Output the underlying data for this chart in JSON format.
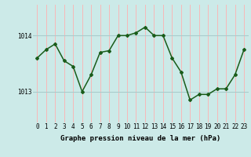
{
  "hours": [
    0,
    1,
    2,
    3,
    4,
    5,
    6,
    7,
    8,
    9,
    10,
    11,
    12,
    13,
    14,
    15,
    16,
    17,
    18,
    19,
    20,
    21,
    22,
    23
  ],
  "pressure": [
    1013.6,
    1013.75,
    1013.85,
    1013.55,
    1013.45,
    1013.0,
    1013.3,
    1013.7,
    1013.73,
    1014.0,
    1014.0,
    1014.05,
    1014.15,
    1014.0,
    1014.0,
    1013.6,
    1013.35,
    1012.85,
    1012.95,
    1012.95,
    1013.05,
    1013.05,
    1013.3,
    1013.75
  ],
  "line_color": "#1a5c1a",
  "marker": "D",
  "marker_size": 2.0,
  "bg_color": "#cceae8",
  "vgrid_color": "#ffb0b0",
  "hgrid_color": "#aacccc",
  "xlabel": "Graphe pression niveau de la mer (hPa)",
  "xlabel_fontsize": 6.5,
  "ylabel_ticks": [
    1013,
    1014
  ],
  "ylim": [
    1012.45,
    1014.55
  ],
  "xlim": [
    -0.5,
    23.5
  ],
  "tick_fontsize": 5.5,
  "linewidth": 1.1
}
